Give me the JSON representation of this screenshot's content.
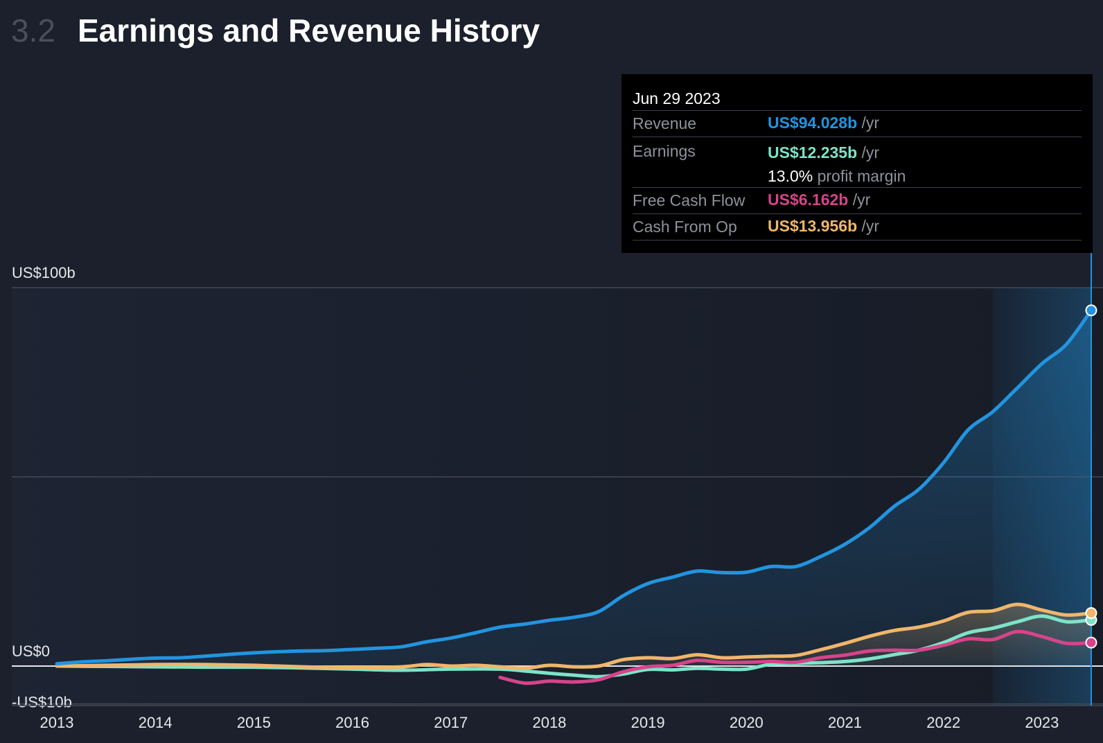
{
  "header": {
    "section_number": "3.2",
    "title": "Earnings and Revenue History"
  },
  "tooltip": {
    "date": "Jun 29 2023",
    "rows": [
      {
        "label": "Revenue",
        "value": "US$94.028b",
        "unit": "/yr"
      },
      {
        "label": "Earnings",
        "value": "US$12.235b",
        "unit": "/yr",
        "margin_value": "13.0%",
        "margin_label": "profit margin"
      },
      {
        "label": "Free Cash Flow",
        "value": "US$6.162b",
        "unit": "/yr"
      },
      {
        "label": "Cash From Op",
        "value": "US$13.956b",
        "unit": "/yr"
      }
    ]
  },
  "colors": {
    "revenue": "#2394df",
    "earnings": "#7ee3c8",
    "fcf": "#d6448a",
    "cfo": "#f0b66b",
    "grid": "#434857",
    "zero": "#e6e8ec",
    "text": "#e6e8ec"
  },
  "chart_data": {
    "type": "line",
    "title": "Earnings and Revenue History",
    "xlabel": "",
    "ylabel": "",
    "xlim": [
      2013.0,
      2023.5
    ],
    "ylim": [
      -10,
      100
    ],
    "y_ticks": [
      {
        "value": 100,
        "label": "US$100b"
      },
      {
        "value": 50,
        "label": ""
      },
      {
        "value": 0,
        "label": "US$0"
      },
      {
        "value": -10,
        "label": "-US$10b"
      }
    ],
    "x_ticks": [
      {
        "value": 2013,
        "label": "2013"
      },
      {
        "value": 2014,
        "label": "2014"
      },
      {
        "value": 2015,
        "label": "2015"
      },
      {
        "value": 2016,
        "label": "2016"
      },
      {
        "value": 2017,
        "label": "2017"
      },
      {
        "value": 2018,
        "label": "2018"
      },
      {
        "value": 2019,
        "label": "2019"
      },
      {
        "value": 2020,
        "label": "2020"
      },
      {
        "value": 2021,
        "label": "2021"
      },
      {
        "value": 2022,
        "label": "2022"
      },
      {
        "value": 2023,
        "label": "2023"
      }
    ],
    "highlight_from": 2022.5,
    "cursor_x": 2023.5,
    "series": [
      {
        "name": "Revenue",
        "key": "revenue",
        "points": [
          [
            2013.0,
            0.6
          ],
          [
            2013.25,
            1.1
          ],
          [
            2013.5,
            1.4
          ],
          [
            2013.75,
            1.8
          ],
          [
            2014.0,
            2.1
          ],
          [
            2014.25,
            2.2
          ],
          [
            2014.5,
            2.6
          ],
          [
            2014.75,
            3.1
          ],
          [
            2015.0,
            3.5
          ],
          [
            2015.25,
            3.8
          ],
          [
            2015.5,
            4.0
          ],
          [
            2015.75,
            4.1
          ],
          [
            2016.0,
            4.4
          ],
          [
            2016.25,
            4.7
          ],
          [
            2016.5,
            5.1
          ],
          [
            2016.75,
            6.4
          ],
          [
            2017.0,
            7.4
          ],
          [
            2017.25,
            8.8
          ],
          [
            2017.5,
            10.3
          ],
          [
            2017.75,
            11.1
          ],
          [
            2018.0,
            12.1
          ],
          [
            2018.25,
            12.9
          ],
          [
            2018.5,
            14.4
          ],
          [
            2018.75,
            18.6
          ],
          [
            2019.0,
            21.8
          ],
          [
            2019.25,
            23.5
          ],
          [
            2019.5,
            25.1
          ],
          [
            2019.75,
            24.7
          ],
          [
            2020.0,
            24.8
          ],
          [
            2020.25,
            26.3
          ],
          [
            2020.5,
            26.3
          ],
          [
            2020.75,
            28.9
          ],
          [
            2021.0,
            32.2
          ],
          [
            2021.25,
            36.6
          ],
          [
            2021.5,
            42.2
          ],
          [
            2021.75,
            46.7
          ],
          [
            2022.0,
            53.7
          ],
          [
            2022.25,
            62.4
          ],
          [
            2022.5,
            67.2
          ],
          [
            2022.75,
            73.5
          ],
          [
            2023.0,
            79.9
          ],
          [
            2023.25,
            85.1
          ],
          [
            2023.5,
            94.0
          ]
        ]
      },
      {
        "name": "Cash From Op",
        "key": "cfo",
        "points": [
          [
            2013.0,
            0.0
          ],
          [
            2013.5,
            0.2
          ],
          [
            2014.0,
            0.4
          ],
          [
            2014.5,
            0.4
          ],
          [
            2015.0,
            0.2
          ],
          [
            2015.5,
            -0.2
          ],
          [
            2016.0,
            -0.4
          ],
          [
            2016.5,
            -0.2
          ],
          [
            2016.75,
            0.4
          ],
          [
            2017.0,
            0.0
          ],
          [
            2017.25,
            0.2
          ],
          [
            2017.5,
            -0.2
          ],
          [
            2017.75,
            -0.6
          ],
          [
            2018.0,
            0.2
          ],
          [
            2018.25,
            -0.2
          ],
          [
            2018.5,
            0.0
          ],
          [
            2018.75,
            1.7
          ],
          [
            2019.0,
            2.2
          ],
          [
            2019.25,
            2.0
          ],
          [
            2019.5,
            3.0
          ],
          [
            2019.75,
            2.2
          ],
          [
            2020.0,
            2.4
          ],
          [
            2020.25,
            2.6
          ],
          [
            2020.5,
            2.8
          ],
          [
            2020.75,
            4.3
          ],
          [
            2021.0,
            6.0
          ],
          [
            2021.25,
            7.9
          ],
          [
            2021.5,
            9.4
          ],
          [
            2021.75,
            10.3
          ],
          [
            2022.0,
            11.9
          ],
          [
            2022.25,
            14.2
          ],
          [
            2022.5,
            14.6
          ],
          [
            2022.75,
            16.3
          ],
          [
            2023.0,
            14.8
          ],
          [
            2023.25,
            13.5
          ],
          [
            2023.5,
            14.0
          ]
        ]
      },
      {
        "name": "Earnings",
        "key": "earnings",
        "points": [
          [
            2013.0,
            0.0
          ],
          [
            2013.5,
            -0.1
          ],
          [
            2014.0,
            -0.2
          ],
          [
            2014.5,
            -0.3
          ],
          [
            2015.0,
            -0.3
          ],
          [
            2015.5,
            -0.5
          ],
          [
            2016.0,
            -0.8
          ],
          [
            2016.5,
            -1.1
          ],
          [
            2017.0,
            -0.8
          ],
          [
            2017.5,
            -0.8
          ],
          [
            2017.75,
            -1.3
          ],
          [
            2018.0,
            -1.9
          ],
          [
            2018.25,
            -2.4
          ],
          [
            2018.5,
            -2.8
          ],
          [
            2018.75,
            -2.1
          ],
          [
            2019.0,
            -0.9
          ],
          [
            2019.25,
            -1.0
          ],
          [
            2019.5,
            -0.6
          ],
          [
            2019.75,
            -0.8
          ],
          [
            2020.0,
            -0.8
          ],
          [
            2020.25,
            0.5
          ],
          [
            2020.5,
            0.7
          ],
          [
            2020.75,
            0.9
          ],
          [
            2021.0,
            1.2
          ],
          [
            2021.25,
            1.9
          ],
          [
            2021.5,
            3.0
          ],
          [
            2021.75,
            4.2
          ],
          [
            2022.0,
            6.2
          ],
          [
            2022.25,
            8.8
          ],
          [
            2022.5,
            10.0
          ],
          [
            2022.75,
            11.7
          ],
          [
            2023.0,
            13.2
          ],
          [
            2023.25,
            11.7
          ],
          [
            2023.5,
            12.2
          ]
        ]
      },
      {
        "name": "Free Cash Flow",
        "key": "fcf",
        "points": [
          [
            2017.5,
            -3.0
          ],
          [
            2017.75,
            -4.5
          ],
          [
            2018.0,
            -4.0
          ],
          [
            2018.25,
            -4.2
          ],
          [
            2018.5,
            -3.6
          ],
          [
            2018.75,
            -1.5
          ],
          [
            2019.0,
            -0.2
          ],
          [
            2019.25,
            0.2
          ],
          [
            2019.5,
            1.5
          ],
          [
            2019.75,
            1.0
          ],
          [
            2020.0,
            1.0
          ],
          [
            2020.25,
            1.2
          ],
          [
            2020.5,
            1.0
          ],
          [
            2020.75,
            2.2
          ],
          [
            2021.0,
            2.9
          ],
          [
            2021.25,
            4.0
          ],
          [
            2021.5,
            4.2
          ],
          [
            2021.75,
            4.2
          ],
          [
            2022.0,
            5.5
          ],
          [
            2022.25,
            7.2
          ],
          [
            2022.5,
            7.0
          ],
          [
            2022.75,
            9.1
          ],
          [
            2023.0,
            7.8
          ],
          [
            2023.25,
            6.0
          ],
          [
            2023.5,
            6.2
          ]
        ]
      }
    ]
  }
}
